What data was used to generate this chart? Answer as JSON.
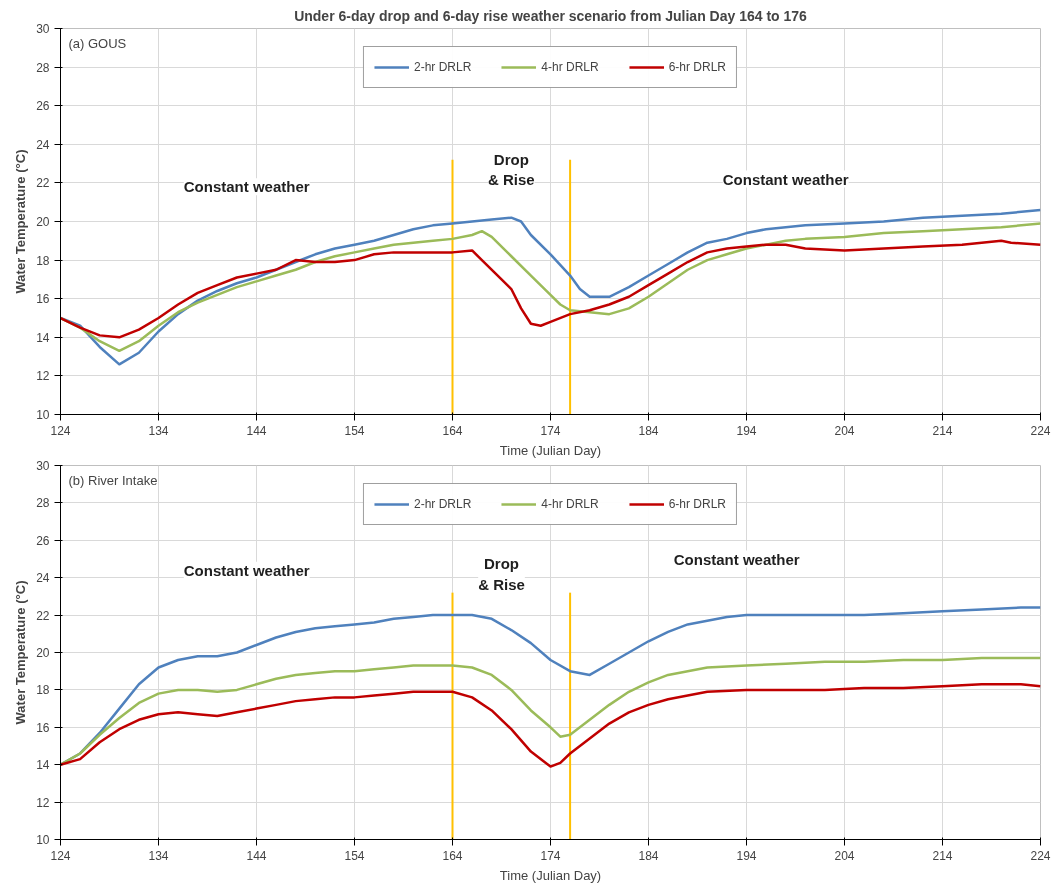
{
  "chart_data": [
    {
      "type": "line",
      "title": "Under 6-day drop and 6-day rise weather scenario from Julian Day 164 to 176",
      "subtitle": "(a) GOUS",
      "xlabel": "Time (Julian Day)",
      "ylabel": "Water Temperature (°C)",
      "xlim": [
        124,
        224
      ],
      "ylim": [
        10,
        30
      ],
      "xticks": [
        124,
        134,
        144,
        154,
        164,
        174,
        184,
        194,
        204,
        214,
        224
      ],
      "yticks": [
        10,
        12,
        14,
        16,
        18,
        20,
        22,
        24,
        26,
        28,
        30
      ],
      "grid": true,
      "legend": "top",
      "series": [
        {
          "name": "2-hr DRLR",
          "color": "#4f81bd",
          "x": [
            124,
            126,
            128,
            130,
            132,
            134,
            136,
            138,
            140,
            142,
            144,
            146,
            148,
            150,
            152,
            154,
            156,
            158,
            160,
            162,
            164,
            166,
            168,
            170,
            171,
            172,
            174,
            176,
            177,
            178,
            180,
            182,
            184,
            186,
            188,
            190,
            192,
            194,
            196,
            198,
            200,
            204,
            208,
            212,
            216,
            220,
            224
          ],
          "values": [
            15,
            14.6,
            13.5,
            12.6,
            13.2,
            14.3,
            15.2,
            15.9,
            16.4,
            16.8,
            17.1,
            17.5,
            17.9,
            18.3,
            18.6,
            18.8,
            19.0,
            19.3,
            19.6,
            19.8,
            19.9,
            20.0,
            20.1,
            20.2,
            20.0,
            19.3,
            18.3,
            17.2,
            16.5,
            16.1,
            16.1,
            16.6,
            17.2,
            17.8,
            18.4,
            18.9,
            19.1,
            19.4,
            19.6,
            19.7,
            19.8,
            19.9,
            20.0,
            20.2,
            20.3,
            20.4,
            20.6
          ]
        },
        {
          "name": "4-hr DRLR",
          "color": "#9bbb59",
          "x": [
            124,
            126,
            128,
            130,
            132,
            134,
            136,
            138,
            140,
            142,
            144,
            146,
            148,
            150,
            152,
            154,
            156,
            158,
            160,
            162,
            164,
            166,
            167,
            168,
            170,
            172,
            174,
            175,
            176,
            178,
            180,
            182,
            184,
            186,
            188,
            190,
            192,
            194,
            196,
            198,
            200,
            204,
            208,
            212,
            216,
            220,
            224
          ],
          "values": [
            15,
            14.5,
            13.8,
            13.3,
            13.8,
            14.6,
            15.3,
            15.8,
            16.2,
            16.6,
            16.9,
            17.2,
            17.5,
            17.9,
            18.2,
            18.4,
            18.6,
            18.8,
            18.9,
            19.0,
            19.1,
            19.3,
            19.5,
            19.2,
            18.2,
            17.2,
            16.2,
            15.7,
            15.4,
            15.3,
            15.2,
            15.5,
            16.1,
            16.8,
            17.5,
            18.0,
            18.3,
            18.6,
            18.8,
            19.0,
            19.1,
            19.2,
            19.4,
            19.5,
            19.6,
            19.7,
            19.9
          ]
        },
        {
          "name": "6-hr DRLR",
          "color": "#c00000",
          "x": [
            124,
            126,
            128,
            130,
            132,
            134,
            136,
            138,
            140,
            142,
            144,
            146,
            148,
            150,
            152,
            154,
            156,
            158,
            160,
            162,
            164,
            166,
            167,
            169,
            170,
            171,
            172,
            173,
            174,
            176,
            178,
            180,
            182,
            184,
            186,
            188,
            190,
            192,
            194,
            196,
            198,
            200,
            204,
            208,
            212,
            216,
            220,
            221,
            224
          ],
          "values": [
            15.0,
            14.5,
            14.1,
            14.0,
            14.4,
            15.0,
            15.7,
            16.3,
            16.7,
            17.1,
            17.3,
            17.5,
            18.0,
            17.9,
            17.9,
            18.0,
            18.3,
            18.4,
            18.4,
            18.4,
            18.4,
            18.5,
            18.0,
            17.0,
            16.5,
            15.5,
            14.7,
            14.6,
            14.8,
            15.2,
            15.4,
            15.7,
            16.1,
            16.7,
            17.3,
            17.9,
            18.4,
            18.6,
            18.7,
            18.8,
            18.8,
            18.6,
            18.5,
            18.6,
            18.7,
            18.8,
            19.0,
            18.9,
            18.8
          ]
        }
      ],
      "ref_lines": [
        {
          "axis": "x",
          "value": 164,
          "color": "#ffc000"
        },
        {
          "axis": "x",
          "value": 176,
          "color": "#ffc000"
        }
      ],
      "annotations": [
        "Constant weather",
        "Constant weather",
        "Drop\n& Rise"
      ]
    },
    {
      "type": "line",
      "subtitle": "(b) River Intake",
      "xlabel": "Time (Julian Day)",
      "ylabel": "Water Temperature (°C)",
      "xlim": [
        124,
        224
      ],
      "ylim": [
        10,
        30
      ],
      "xticks": [
        124,
        134,
        144,
        154,
        164,
        174,
        184,
        194,
        204,
        214,
        224
      ],
      "yticks": [
        10,
        12,
        14,
        16,
        18,
        20,
        22,
        24,
        26,
        28,
        30
      ],
      "grid": true,
      "legend": "top",
      "series": [
        {
          "name": "2-hr DRLR",
          "color": "#4f81bd",
          "x": [
            124,
            126,
            128,
            130,
            132,
            134,
            136,
            138,
            140,
            142,
            144,
            146,
            148,
            150,
            152,
            154,
            156,
            158,
            160,
            162,
            164,
            166,
            168,
            170,
            172,
            174,
            176,
            178,
            180,
            182,
            184,
            186,
            188,
            190,
            192,
            194,
            198,
            202,
            206,
            210,
            214,
            218,
            222,
            224
          ],
          "values": [
            14.0,
            14.6,
            15.7,
            17.0,
            18.3,
            19.2,
            19.6,
            19.8,
            19.8,
            20.0,
            20.4,
            20.8,
            21.1,
            21.3,
            21.4,
            21.5,
            21.6,
            21.8,
            21.9,
            22.0,
            22.0,
            22.0,
            21.8,
            21.2,
            20.5,
            19.6,
            19.0,
            18.8,
            19.4,
            20.0,
            20.6,
            21.1,
            21.5,
            21.7,
            21.9,
            22.0,
            22.0,
            22.0,
            22.0,
            22.1,
            22.2,
            22.3,
            22.4,
            22.4
          ]
        },
        {
          "name": "4-hr DRLR",
          "color": "#9bbb59",
          "x": [
            124,
            126,
            128,
            130,
            132,
            134,
            136,
            138,
            140,
            142,
            144,
            146,
            148,
            150,
            152,
            154,
            156,
            158,
            160,
            162,
            164,
            166,
            168,
            170,
            172,
            174,
            175,
            176,
            178,
            180,
            182,
            184,
            186,
            188,
            190,
            194,
            198,
            202,
            206,
            210,
            214,
            218,
            222,
            224
          ],
          "values": [
            14.0,
            14.6,
            15.6,
            16.5,
            17.3,
            17.8,
            18.0,
            18.0,
            17.9,
            18.0,
            18.3,
            18.6,
            18.8,
            18.9,
            19.0,
            19.0,
            19.1,
            19.2,
            19.3,
            19.3,
            19.3,
            19.2,
            18.8,
            18.0,
            16.9,
            16.0,
            15.5,
            15.6,
            16.4,
            17.2,
            17.9,
            18.4,
            18.8,
            19.0,
            19.2,
            19.3,
            19.4,
            19.5,
            19.5,
            19.6,
            19.6,
            19.7,
            19.7,
            19.7
          ]
        },
        {
          "name": "6-hr DRLR",
          "color": "#c00000",
          "x": [
            124,
            126,
            128,
            130,
            132,
            134,
            136,
            138,
            140,
            142,
            144,
            146,
            148,
            150,
            152,
            154,
            156,
            158,
            160,
            162,
            164,
            166,
            168,
            170,
            172,
            174,
            175,
            176,
            178,
            180,
            182,
            184,
            186,
            188,
            190,
            194,
            198,
            202,
            206,
            210,
            214,
            218,
            222,
            224
          ],
          "values": [
            14.0,
            14.3,
            15.2,
            15.9,
            16.4,
            16.7,
            16.8,
            16.7,
            16.6,
            16.8,
            17.0,
            17.2,
            17.4,
            17.5,
            17.6,
            17.6,
            17.7,
            17.8,
            17.9,
            17.9,
            17.9,
            17.6,
            16.9,
            15.9,
            14.7,
            13.9,
            14.1,
            14.6,
            15.4,
            16.2,
            16.8,
            17.2,
            17.5,
            17.7,
            17.9,
            18.0,
            18.0,
            18.0,
            18.1,
            18.1,
            18.2,
            18.3,
            18.3,
            18.2
          ]
        }
      ],
      "ref_lines": [
        {
          "axis": "x",
          "value": 164,
          "color": "#ffc000"
        },
        {
          "axis": "x",
          "value": 176,
          "color": "#ffc000"
        }
      ],
      "annotations": [
        "Constant weather",
        "Constant weather",
        "Drop\n& Rise"
      ]
    }
  ]
}
